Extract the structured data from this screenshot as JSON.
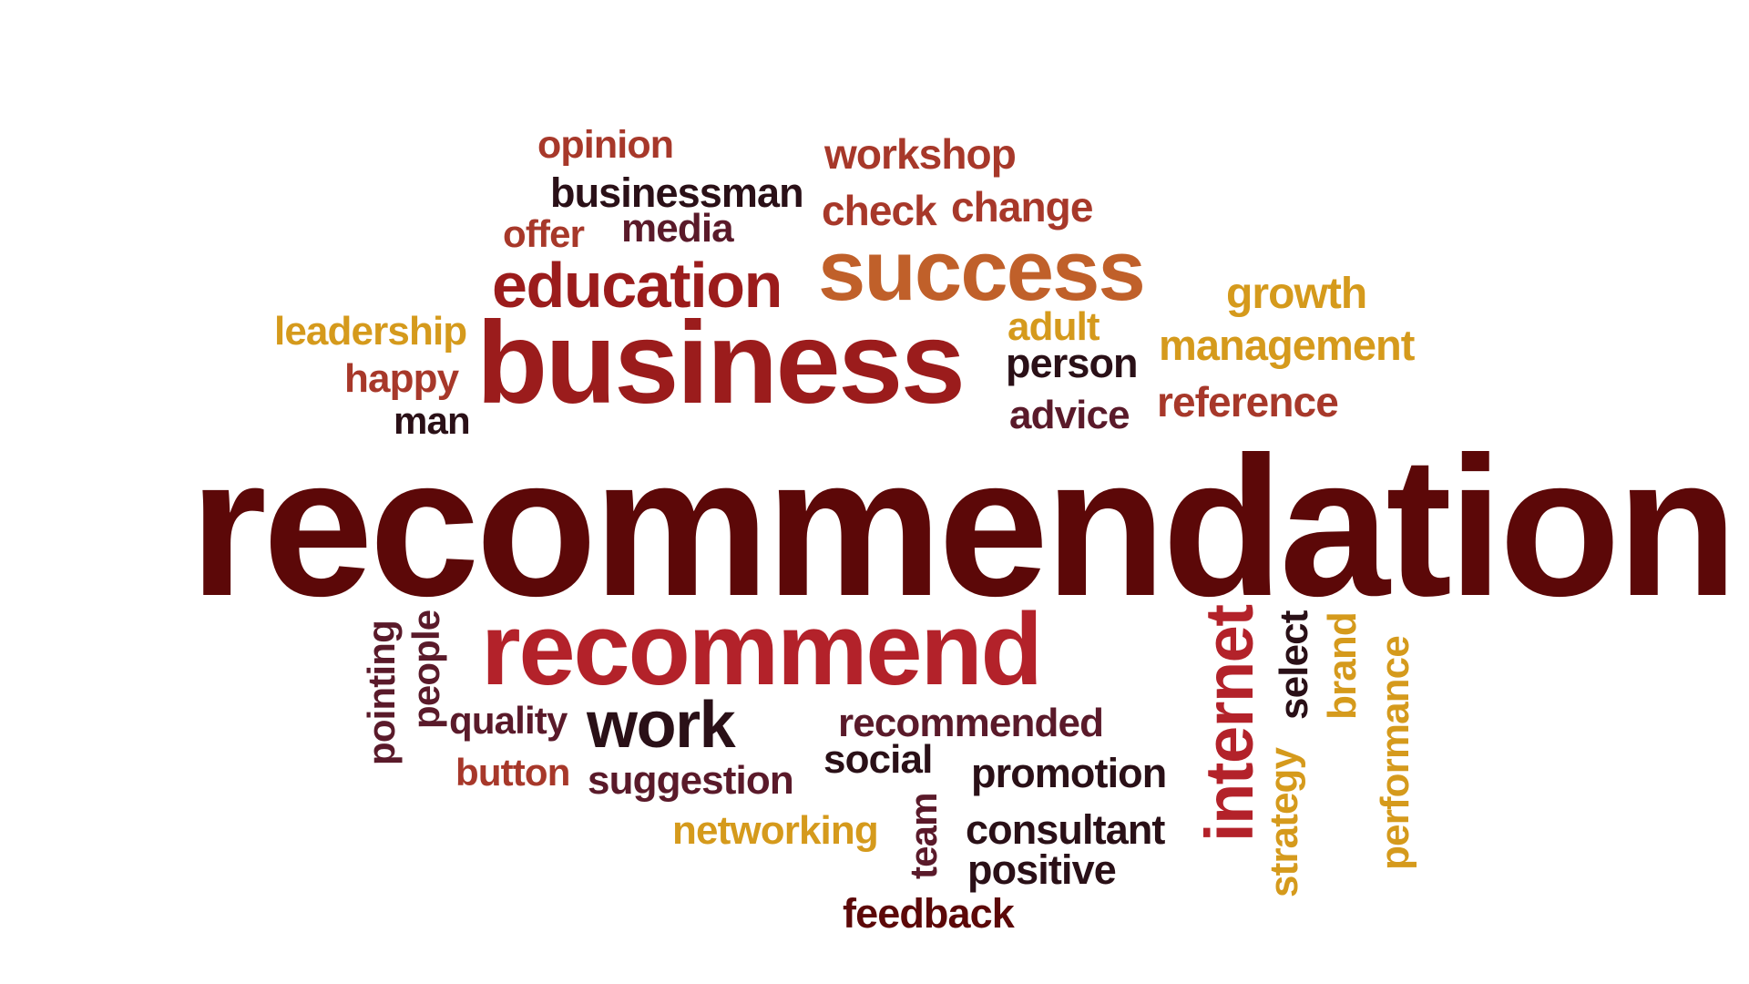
{
  "words": {
    "recommendation": "recommendation",
    "business": "business",
    "success": "success",
    "recommend": "recommend",
    "education": "education",
    "opinion": "opinion",
    "workshop": "workshop",
    "businessman": "businessman",
    "check": "check",
    "change": "change",
    "offer": "offer",
    "media": "media",
    "growth": "growth",
    "leadership": "leadership",
    "adult": "adult",
    "management": "management",
    "happy": "happy",
    "person": "person",
    "man": "man",
    "advice": "advice",
    "reference": "reference",
    "pointing": "pointing",
    "people": "people",
    "quality": "quality",
    "work": "work",
    "recommended": "recommended",
    "internet": "internet",
    "select": "select",
    "brand": "brand",
    "performance": "performance",
    "strategy": "strategy",
    "button": "button",
    "suggestion": "suggestion",
    "social": "social",
    "promotion": "promotion",
    "networking": "networking",
    "team": "team",
    "consultant": "consultant",
    "positive": "positive",
    "feedback": "feedback"
  },
  "colors": {
    "maroon": "#5c0808",
    "red": "#9b1c1c",
    "crimson": "#b3222a",
    "rust": "#a7382a",
    "orange": "#c0602a",
    "gold": "#d59a1c",
    "dark": "#2a1017",
    "plum": "#5a1a2a"
  }
}
